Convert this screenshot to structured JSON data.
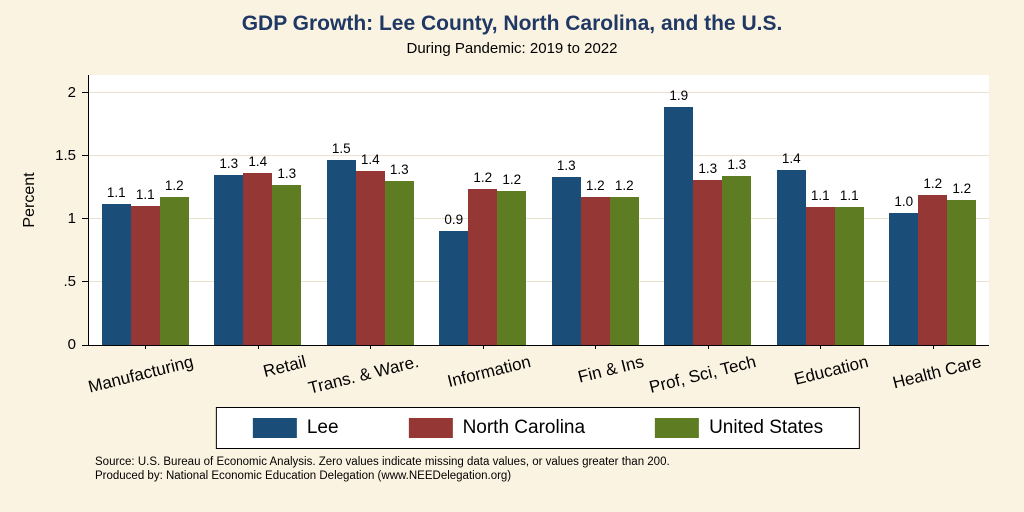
{
  "title": "GDP Growth: Lee County, North Carolina, and the U.S.",
  "subtitle": "During Pandemic: 2019 to 2022",
  "source": {
    "line1": "Source: U.S. Bureau of Economic Analysis. Zero values indicate missing data values, or values greater than 200.",
    "line2": "Produced by: National Economic Education Delegation (www.NEEDelegation.org)"
  },
  "colors": {
    "background": "#FBF3E1",
    "title": "#1F3864",
    "plot_background": "#FFFFFF",
    "gridline": "#E8E1CE",
    "axis": "#000000"
  },
  "chart_data": {
    "type": "bar",
    "title": "GDP Growth: Lee County, North Carolina, and the U.S.",
    "subtitle": "During Pandemic: 2019 to 2022",
    "xlabel": "",
    "ylabel": "Percent",
    "categories": [
      "Manufacturing",
      "Retail",
      "Trans. & Ware.",
      "Information",
      "Fin & Ins",
      "Prof, Sci, Tech",
      "Education",
      "Health Care"
    ],
    "series": [
      {
        "name": "Lee",
        "color": "#1A4E79",
        "values": [
          1.1,
          1.3,
          1.5,
          0.9,
          1.3,
          1.9,
          1.4,
          1.0
        ],
        "bar_heights": [
          1.12,
          1.35,
          1.47,
          0.9,
          1.33,
          1.89,
          1.39,
          1.05
        ]
      },
      {
        "name": "North Carolina",
        "color": "#953735",
        "values": [
          1.1,
          1.4,
          1.4,
          1.2,
          1.2,
          1.3,
          1.1,
          1.2
        ],
        "bar_heights": [
          1.1,
          1.36,
          1.38,
          1.24,
          1.17,
          1.31,
          1.09,
          1.19
        ]
      },
      {
        "name": "United States",
        "color": "#5E7D23",
        "values": [
          1.2,
          1.3,
          1.3,
          1.2,
          1.2,
          1.3,
          1.1,
          1.2
        ],
        "bar_heights": [
          1.17,
          1.27,
          1.3,
          1.22,
          1.17,
          1.34,
          1.09,
          1.15
        ]
      }
    ],
    "yticks": [
      0,
      0.5,
      1,
      1.5,
      2
    ],
    "ytick_labels": [
      "0",
      ".5",
      "1",
      "1.5",
      "2"
    ],
    "ylim": [
      0,
      2.14
    ],
    "grid": true,
    "legend_position": "bottom"
  }
}
